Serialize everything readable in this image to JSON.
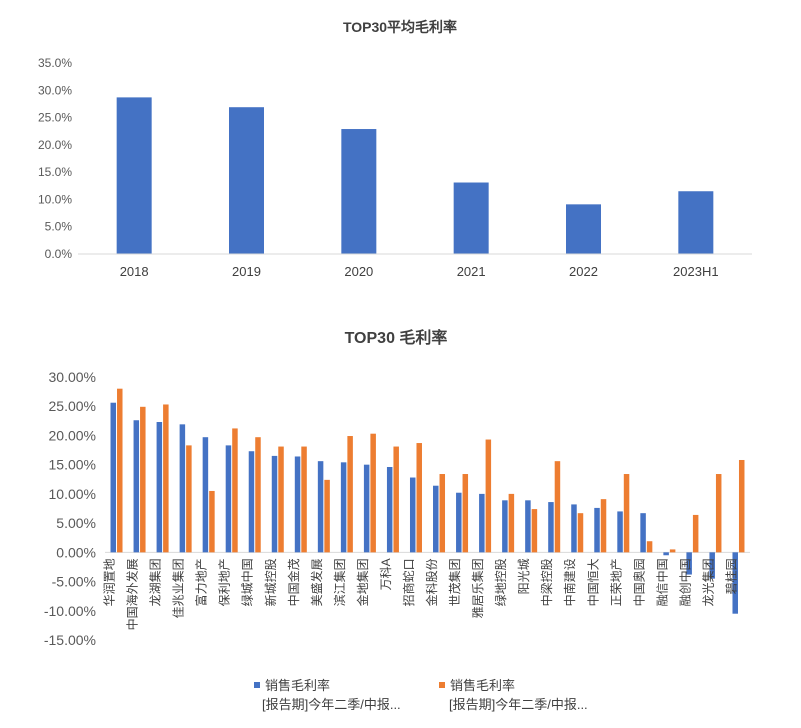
{
  "chart_data": [
    {
      "type": "bar",
      "title": "TOP30平均毛利率",
      "categories": [
        "2018",
        "2019",
        "2020",
        "2021",
        "2022",
        "2023H1"
      ],
      "values": [
        28.7,
        26.9,
        22.9,
        13.1,
        9.1,
        11.5
      ],
      "ylim": [
        0,
        35
      ],
      "ytick_step": 5,
      "ytick_format": "0.0%",
      "grid": false,
      "colors": {
        "bar": "#4472c4",
        "axis": "#d9d9d9"
      }
    },
    {
      "type": "bar",
      "title": "TOP30 毛利率",
      "categories": [
        "华润置地",
        "中国海外发展",
        "龙湖集团",
        "佳兆业集团",
        "富力地产",
        "保利地产",
        "绿城中国",
        "新城控股",
        "中国金茂",
        "美盛发展",
        "滨江集团",
        "金地集团",
        "万科A",
        "招商蛇口",
        "金科股份",
        "世茂集团",
        "雅居乐集团",
        "绿地控股",
        "阳光城",
        "中梁控股",
        "中南建设",
        "中国恒大",
        "正荣地产",
        "中国奥园",
        "融信中国",
        "融创中国",
        "龙光集团",
        "碧桂园"
      ],
      "series": [
        {
          "name": "销售毛利率\n[报告期]今年二季/中报...",
          "color": "#4472c4",
          "values": [
            25.6,
            22.6,
            22.3,
            21.9,
            19.7,
            18.3,
            17.3,
            16.5,
            16.4,
            15.6,
            15.4,
            15.0,
            14.6,
            12.8,
            11.4,
            10.2,
            10.0,
            8.9,
            8.9,
            8.6,
            8.2,
            7.6,
            7.0,
            6.7,
            -0.5,
            -3.8,
            -4.5,
            -10.5
          ]
        },
        {
          "name": "销售毛利率\n[报告期]今年二季/中报...",
          "color": "#ed7d31",
          "values": [
            28.0,
            24.9,
            25.3,
            18.3,
            10.5,
            21.2,
            19.7,
            18.1,
            18.1,
            12.4,
            19.9,
            20.3,
            18.1,
            18.7,
            13.4,
            13.4,
            19.3,
            10.0,
            7.4,
            15.6,
            6.7,
            9.1,
            13.4,
            1.9,
            0.5,
            6.4,
            13.4,
            15.8
          ]
        }
      ],
      "ylim": [
        -15,
        30
      ],
      "ytick_step": 5,
      "ytick_format": "0.00%",
      "legend": "bottom",
      "grid": false,
      "colors": {
        "axis": "#d9d9d9"
      }
    }
  ]
}
